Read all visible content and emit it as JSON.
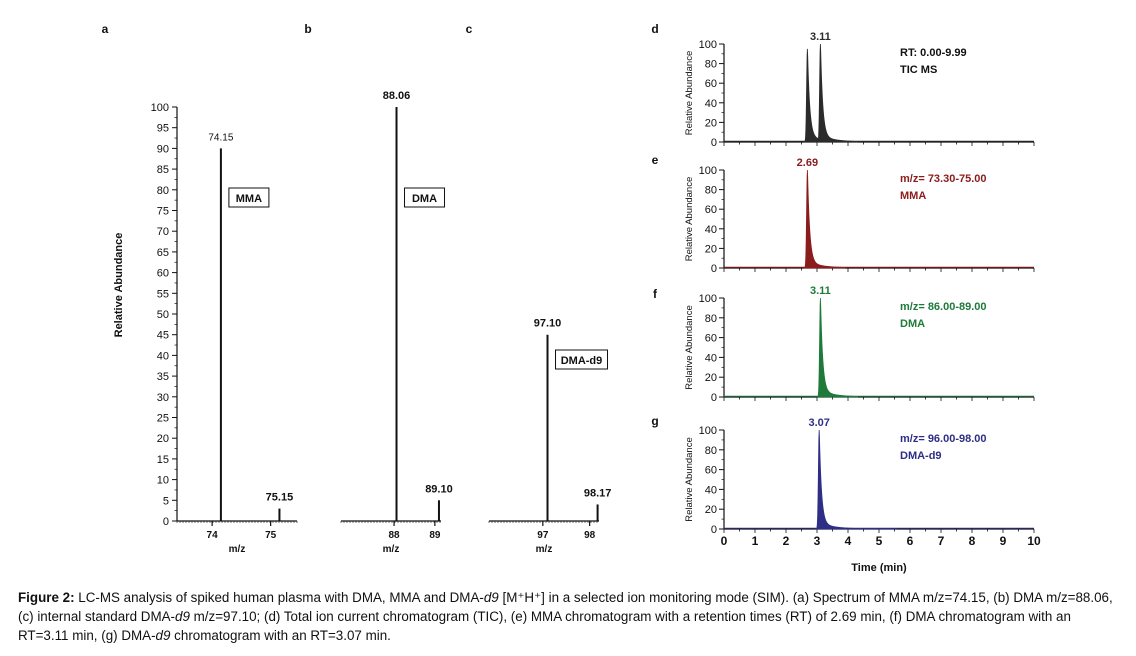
{
  "figure": {
    "caption_label": "Figure 2:",
    "caption_parts": [
      {
        "t": " LC-MS analysis of spiked human plasma with DMA, MMA and DMA-",
        "i": false
      },
      {
        "t": "d9",
        "i": true
      },
      {
        "t": " [M⁺H⁺] in a selected ion monitoring mode (SIM). (a) Spectrum of MMA m/z=74.15, (b) DMA m/z=88.06, (c) internal standard DMA-",
        "i": false
      },
      {
        "t": "d9",
        "i": true
      },
      {
        "t": " m/z=97.10; (d) Total ion current chromatogram (TIC), (e) MMA chromatogram with a retention times (RT) of 2.69 min, (f) DMA chromatogram with an RT=3.11 min, (g) DMA-",
        "i": false
      },
      {
        "t": "d9",
        "i": true
      },
      {
        "t": " chromatogram with an RT=3.07 min.",
        "i": false
      }
    ]
  },
  "colors": {
    "ink": "#111111",
    "tic": "#2b2b2b",
    "mma": "#8b1c1c",
    "dma": "#1f7a3a",
    "dmad9": "#2e2e86"
  },
  "chart_data": [
    {
      "panel": "a",
      "type": "bar",
      "ylabel": "Relative Abundance",
      "xlabel": "m/z",
      "ylim": [
        0,
        100
      ],
      "yticks": [
        0,
        5,
        10,
        15,
        20,
        25,
        30,
        35,
        40,
        45,
        50,
        55,
        60,
        65,
        70,
        75,
        80,
        85,
        90,
        95,
        100
      ],
      "xticks": [
        74,
        75
      ],
      "xlim": [
        73.4,
        75.45
      ],
      "peaks": [
        {
          "x": 74.15,
          "y": 90,
          "label": "74.15"
        },
        {
          "x": 75.15,
          "y": 3,
          "label": "75.15"
        }
      ],
      "legend_box": "MMA"
    },
    {
      "panel": "b",
      "type": "bar",
      "xlabel": "m/z",
      "xticks": [
        88,
        89
      ],
      "xlim": [
        86.7,
        89.15
      ],
      "peaks": [
        {
          "x": 88.06,
          "y": 100,
          "label": "88.06"
        },
        {
          "x": 89.1,
          "y": 5,
          "label": "89.10"
        }
      ],
      "legend_box": "DMA"
    },
    {
      "panel": "c",
      "type": "bar",
      "xlabel": "m/z",
      "xticks": [
        97,
        98
      ],
      "xlim": [
        95.85,
        98.2
      ],
      "peaks": [
        {
          "x": 97.1,
          "y": 45,
          "label": "97.10"
        },
        {
          "x": 98.17,
          "y": 4,
          "label": "98.17"
        }
      ],
      "legend_box": "DMA-d9"
    },
    {
      "panel": "d",
      "type": "area",
      "ylabel": "Relative Abundance",
      "ylim": [
        0,
        100
      ],
      "yticks": [
        0,
        20,
        40,
        60,
        80,
        100
      ],
      "xlim": [
        0,
        10
      ],
      "peak_label": "3.11",
      "peak_rt": 3.11,
      "series_color": "#2b2b2b",
      "legend": [
        "RT: 0.00-9.99",
        "TIC MS"
      ],
      "peaks": [
        {
          "rt": 2.69,
          "h": 95
        },
        {
          "rt": 3.11,
          "h": 100
        }
      ]
    },
    {
      "panel": "e",
      "type": "area",
      "ylabel": "Relative Abundance",
      "ylim": [
        0,
        100
      ],
      "yticks": [
        0,
        20,
        40,
        60,
        80,
        100
      ],
      "xlim": [
        0,
        10
      ],
      "peak_label": "2.69",
      "peak_rt": 2.69,
      "series_color": "#8b1c1c",
      "legend": [
        "m/z= 73.30-75.00",
        "MMA"
      ],
      "peaks": [
        {
          "rt": 2.69,
          "h": 100
        }
      ]
    },
    {
      "panel": "f",
      "type": "area",
      "ylabel": "Relative Abundance",
      "ylim": [
        0,
        100
      ],
      "yticks": [
        0,
        20,
        40,
        60,
        80,
        100
      ],
      "xlim": [
        0,
        10
      ],
      "peak_label": "3.11",
      "peak_rt": 3.11,
      "series_color": "#1f7a3a",
      "legend": [
        "m/z= 86.00-89.00",
        "DMA"
      ],
      "peaks": [
        {
          "rt": 3.11,
          "h": 100
        }
      ]
    },
    {
      "panel": "g",
      "type": "area",
      "ylabel": "Relative Abundance",
      "ylim": [
        0,
        100
      ],
      "yticks": [
        0,
        20,
        40,
        60,
        80,
        100
      ],
      "xlim": [
        0,
        10
      ],
      "xticks": [
        0,
        1,
        2,
        3,
        4,
        5,
        6,
        7,
        8,
        9,
        10
      ],
      "xlabel": "Time (min)",
      "peak_label": "3.07",
      "peak_rt": 3.07,
      "series_color": "#2e2e86",
      "legend": [
        "m/z= 96.00-98.00",
        "DMA-d9"
      ],
      "peaks": [
        {
          "rt": 3.07,
          "h": 100
        }
      ]
    }
  ]
}
